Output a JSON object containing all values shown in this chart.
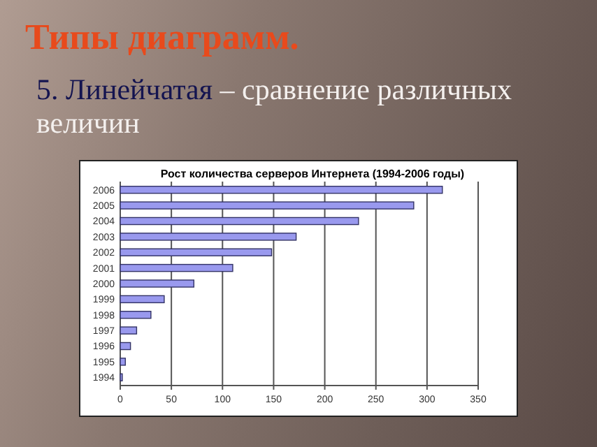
{
  "chart_data": {
    "type": "bar",
    "orientation": "horizontal",
    "title": "Рост количества серверов Интернета (1994-2006 годы)",
    "annotations": [
      "Типы диаграмм.",
      "5. Линейчатая",
      "– сравнение различных величин"
    ],
    "categories": [
      "2006",
      "2005",
      "2004",
      "2003",
      "2002",
      "2001",
      "2000",
      "1999",
      "1998",
      "1997",
      "1996",
      "1995",
      "1994"
    ],
    "values": [
      315,
      287,
      233,
      172,
      148,
      110,
      72,
      43,
      30,
      16,
      10,
      5,
      2
    ],
    "color": "#9999ee",
    "xlim": [
      0,
      350
    ],
    "xticks": [
      0,
      50,
      100,
      150,
      200,
      250,
      300,
      350
    ],
    "grid": "x"
  }
}
